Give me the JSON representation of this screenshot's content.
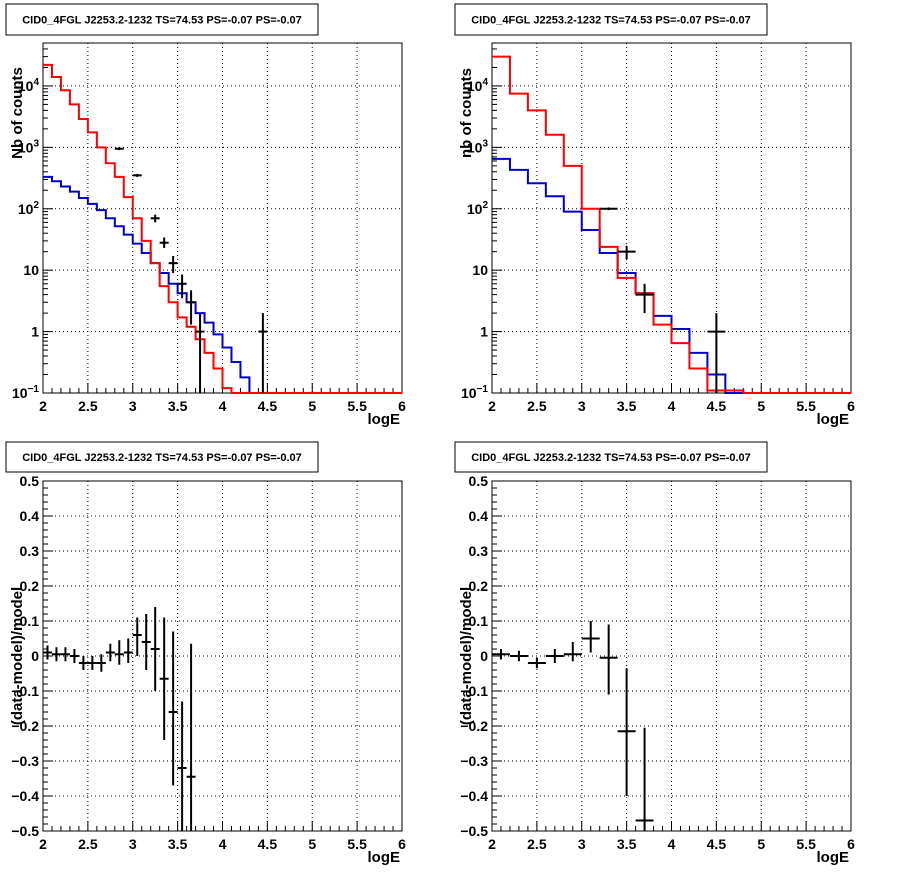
{
  "panels": [
    {
      "id": "tl",
      "title": "CID0_4FGL J2253.2-1232 TS=74.53 PS=-0.07 PS=-0.07",
      "xlabel": "logE",
      "ylabel": "Nb of counts",
      "xlim": [
        2,
        6
      ],
      "ylim": [
        0.1,
        50000
      ],
      "yscale": "log",
      "xticks": [
        "2",
        "2.5",
        "3",
        "3.5",
        "4",
        "4.5",
        "5",
        "5.5",
        "6"
      ],
      "yticks": [
        {
          "v": 0.1,
          "base": "10",
          "exp": "−1"
        },
        {
          "v": 1,
          "label": "1"
        },
        {
          "v": 10,
          "label": "10"
        },
        {
          "v": 100,
          "base": "10",
          "exp": "2"
        },
        {
          "v": 1000,
          "base": "10",
          "exp": "3"
        },
        {
          "v": 10000,
          "base": "10",
          "exp": "4"
        }
      ],
      "grid": true
    },
    {
      "id": "tr",
      "title": "CID0_4FGL J2253.2-1232 TS=74.53 PS=-0.07 PS=-0.07",
      "xlabel": "logE",
      "ylabel": "nb of counts",
      "xlim": [
        2,
        6
      ],
      "ylim": [
        0.1,
        50000
      ],
      "yscale": "log",
      "xticks": [
        "2",
        "2.5",
        "3",
        "3.5",
        "4",
        "4.5",
        "5",
        "5.5",
        "6"
      ],
      "yticks": [
        {
          "v": 0.1,
          "base": "10",
          "exp": "−1"
        },
        {
          "v": 1,
          "label": "1"
        },
        {
          "v": 10,
          "label": "10"
        },
        {
          "v": 100,
          "base": "10",
          "exp": "2"
        },
        {
          "v": 1000,
          "base": "10",
          "exp": "3"
        },
        {
          "v": 10000,
          "base": "10",
          "exp": "4"
        }
      ],
      "grid": true
    },
    {
      "id": "bl",
      "title": "CID0_4FGL J2253.2-1232 TS=74.53 PS=-0.07 PS=-0.07",
      "xlabel": "logE",
      "ylabel": "(data-model)/model",
      "xlim": [
        2,
        6
      ],
      "ylim": [
        -0.5,
        0.5
      ],
      "yscale": "linear",
      "xticks": [
        "2",
        "2.5",
        "3",
        "3.5",
        "4",
        "4.5",
        "5",
        "5.5",
        "6"
      ],
      "yticks": [
        {
          "v": -0.5,
          "label": "−0.5"
        },
        {
          "v": -0.4,
          "label": "−0.4"
        },
        {
          "v": -0.3,
          "label": "−0.3"
        },
        {
          "v": -0.2,
          "label": "−0.2"
        },
        {
          "v": -0.1,
          "label": "−0.1"
        },
        {
          "v": 0,
          "label": "0"
        },
        {
          "v": 0.1,
          "label": "0.1"
        },
        {
          "v": 0.2,
          "label": "0.2"
        },
        {
          "v": 0.3,
          "label": "0.3"
        },
        {
          "v": 0.4,
          "label": "0.4"
        },
        {
          "v": 0.5,
          "label": "0.5"
        }
      ],
      "grid": true
    },
    {
      "id": "br",
      "title": "CID0_4FGL J2253.2-1232 TS=74.53 PS=-0.07 PS=-0.07",
      "xlabel": "logE",
      "ylabel": "(data-model)/model",
      "xlim": [
        2,
        6
      ],
      "ylim": [
        -0.5,
        0.5
      ],
      "yscale": "linear",
      "xticks": [
        "2",
        "2.5",
        "3",
        "3.5",
        "4",
        "4.5",
        "5",
        "5.5",
        "6"
      ],
      "yticks": [
        {
          "v": -0.5,
          "label": "−0.5"
        },
        {
          "v": -0.4,
          "label": "−0.4"
        },
        {
          "v": -0.3,
          "label": "−0.3"
        },
        {
          "v": -0.2,
          "label": "−0.2"
        },
        {
          "v": -0.1,
          "label": "−0.1"
        },
        {
          "v": 0,
          "label": "0"
        },
        {
          "v": 0.1,
          "label": "0.1"
        },
        {
          "v": 0.2,
          "label": "0.2"
        },
        {
          "v": 0.3,
          "label": "0.3"
        },
        {
          "v": 0.4,
          "label": "0.4"
        },
        {
          "v": 0.5,
          "label": "0.5"
        }
      ],
      "grid": true
    }
  ],
  "colors": {
    "total_model": "#ff0000",
    "background_model": "#0000cc",
    "data": "#000000",
    "grid": "#000000"
  },
  "chart_data": [
    {
      "panel": "tl",
      "type": "line",
      "step": true,
      "bin_edges": [
        2.0,
        2.1,
        2.2,
        2.3,
        2.4,
        2.5,
        2.6,
        2.7,
        2.8,
        2.9,
        3.0,
        3.1,
        3.2,
        3.3,
        3.4,
        3.5,
        3.6,
        3.7,
        3.8,
        3.9,
        4.0,
        4.1,
        4.2,
        4.3,
        4.4,
        4.5,
        4.6,
        4.7,
        4.8,
        4.9,
        5.0,
        5.1,
        5.2,
        5.3,
        5.4,
        5.5,
        5.6,
        5.7,
        5.8,
        5.9,
        6.0
      ],
      "series": [
        {
          "values": [
            22000,
            14000,
            8500,
            5000,
            2900,
            1750,
            1000,
            550,
            330,
            155,
            70,
            30,
            13,
            5.5,
            3.0,
            1.7,
            1.2,
            0.75,
            0.45,
            0.25,
            0.12,
            0.1,
            0.1,
            0.1,
            0.1,
            0.1,
            0.1,
            0.1,
            0.1,
            0.1,
            0.1,
            0.1,
            0.1,
            0.1,
            0.1,
            0.1,
            0.1,
            0.1,
            0.1,
            0.1
          ]
        },
        {
          "values": [
            330,
            280,
            230,
            190,
            150,
            120,
            95,
            70,
            52,
            38,
            27,
            19,
            13,
            9,
            6.0,
            4.2,
            3.0,
            2.0,
            1.4,
            0.9,
            0.55,
            0.32,
            0.18,
            0.1,
            0.1,
            0.1,
            0.1,
            0.1,
            0.1,
            0.1,
            0.1,
            0.1,
            0.1,
            0.1,
            0.1,
            0.1,
            0.1,
            0.1,
            0.1,
            0.1
          ]
        }
      ],
      "points": [
        {
          "x": 2.85,
          "y": 950,
          "ylo": 900,
          "yhi": 1000
        },
        {
          "x": 3.05,
          "y": 350,
          "ylo": 330,
          "yhi": 370
        },
        {
          "x": 3.25,
          "y": 70,
          "ylo": 60,
          "yhi": 80
        },
        {
          "x": 3.35,
          "y": 28,
          "ylo": 23,
          "yhi": 34
        },
        {
          "x": 3.45,
          "y": 13,
          "ylo": 9,
          "yhi": 17
        },
        {
          "x": 3.55,
          "y": 6,
          "ylo": 3.5,
          "yhi": 8.5
        },
        {
          "x": 3.65,
          "y": 3,
          "ylo": 1.3,
          "yhi": 4.7
        },
        {
          "x": 3.75,
          "y": 1,
          "ylo": 0.1,
          "yhi": 2
        },
        {
          "x": 4.45,
          "y": 1,
          "ylo": 0.1,
          "yhi": 2
        }
      ]
    },
    {
      "panel": "tr",
      "type": "line",
      "step": true,
      "bin_edges": [
        2.0,
        2.2,
        2.4,
        2.6,
        2.8,
        3.0,
        3.2,
        3.4,
        3.6,
        3.8,
        4.0,
        4.2,
        4.4,
        4.6,
        4.8,
        5.0,
        5.2,
        5.4,
        5.6,
        5.8,
        6.0
      ],
      "series": [
        {
          "values": [
            30000,
            7500,
            4000,
            1600,
            500,
            100,
            24,
            7.5,
            4.2,
            1.3,
            0.65,
            0.25,
            0.11,
            0.11,
            0.1,
            0.1,
            0.1,
            0.1,
            0.1,
            0.1
          ]
        },
        {
          "values": [
            650,
            430,
            260,
            160,
            90,
            45,
            19,
            9,
            4.2,
            1.8,
            1.1,
            0.45,
            0.2,
            0.1,
            0.1,
            0.1,
            0.1,
            0.1,
            0.1,
            0.1
          ]
        }
      ],
      "points": [
        {
          "x": 3.3,
          "y": 100,
          "ylo": 95,
          "yhi": 105
        },
        {
          "x": 3.5,
          "y": 20,
          "ylo": 15,
          "yhi": 25
        },
        {
          "x": 3.7,
          "y": 4,
          "ylo": 2,
          "yhi": 6
        },
        {
          "x": 4.5,
          "y": 1,
          "ylo": 0.1,
          "yhi": 2
        }
      ]
    },
    {
      "panel": "bl",
      "type": "scatter",
      "ylim": [
        -0.5,
        0.5
      ],
      "points": [
        {
          "x": 2.05,
          "y": 0.01,
          "ylo": -0.01,
          "yhi": 0.03
        },
        {
          "x": 2.15,
          "y": 0.005,
          "ylo": -0.015,
          "yhi": 0.025
        },
        {
          "x": 2.25,
          "y": 0.005,
          "ylo": -0.015,
          "yhi": 0.025
        },
        {
          "x": 2.35,
          "y": 0.0,
          "ylo": -0.02,
          "yhi": 0.02
        },
        {
          "x": 2.45,
          "y": -0.02,
          "ylo": -0.04,
          "yhi": 0.0
        },
        {
          "x": 2.55,
          "y": -0.02,
          "ylo": -0.04,
          "yhi": 0.0
        },
        {
          "x": 2.65,
          "y": -0.02,
          "ylo": -0.045,
          "yhi": 0.005
        },
        {
          "x": 2.75,
          "y": 0.01,
          "ylo": -0.015,
          "yhi": 0.035
        },
        {
          "x": 2.85,
          "y": 0.005,
          "ylo": -0.025,
          "yhi": 0.045
        },
        {
          "x": 2.95,
          "y": 0.01,
          "ylo": -0.02,
          "yhi": 0.05
        },
        {
          "x": 3.05,
          "y": 0.06,
          "ylo": 0.0,
          "yhi": 0.11
        },
        {
          "x": 3.15,
          "y": 0.04,
          "ylo": -0.04,
          "yhi": 0.12
        },
        {
          "x": 3.25,
          "y": 0.02,
          "ylo": -0.1,
          "yhi": 0.14
        },
        {
          "x": 3.35,
          "y": -0.065,
          "ylo": -0.24,
          "yhi": 0.11
        },
        {
          "x": 3.45,
          "y": -0.16,
          "ylo": -0.37,
          "yhi": 0.07
        },
        {
          "x": 3.55,
          "y": -0.32,
          "ylo": -0.5,
          "yhi": -0.13
        },
        {
          "x": 3.65,
          "y": -0.345,
          "ylo": -0.5,
          "yhi": 0.035
        }
      ]
    },
    {
      "panel": "br",
      "type": "scatter",
      "ylim": [
        -0.5,
        0.5
      ],
      "points": [
        {
          "x": 2.1,
          "y": 0.005,
          "ylo": -0.01,
          "yhi": 0.02
        },
        {
          "x": 2.3,
          "y": 0.0,
          "ylo": -0.015,
          "yhi": 0.015
        },
        {
          "x": 2.5,
          "y": -0.02,
          "ylo": -0.035,
          "yhi": -0.005
        },
        {
          "x": 2.7,
          "y": 0.0,
          "ylo": -0.02,
          "yhi": 0.02
        },
        {
          "x": 2.9,
          "y": 0.005,
          "ylo": -0.015,
          "yhi": 0.04
        },
        {
          "x": 3.1,
          "y": 0.05,
          "ylo": 0.01,
          "yhi": 0.1
        },
        {
          "x": 3.3,
          "y": -0.005,
          "ylo": -0.11,
          "yhi": 0.09
        },
        {
          "x": 3.5,
          "y": -0.215,
          "ylo": -0.4,
          "yhi": -0.035
        },
        {
          "x": 3.7,
          "y": -0.47,
          "ylo": -0.5,
          "yhi": -0.205
        }
      ]
    }
  ]
}
